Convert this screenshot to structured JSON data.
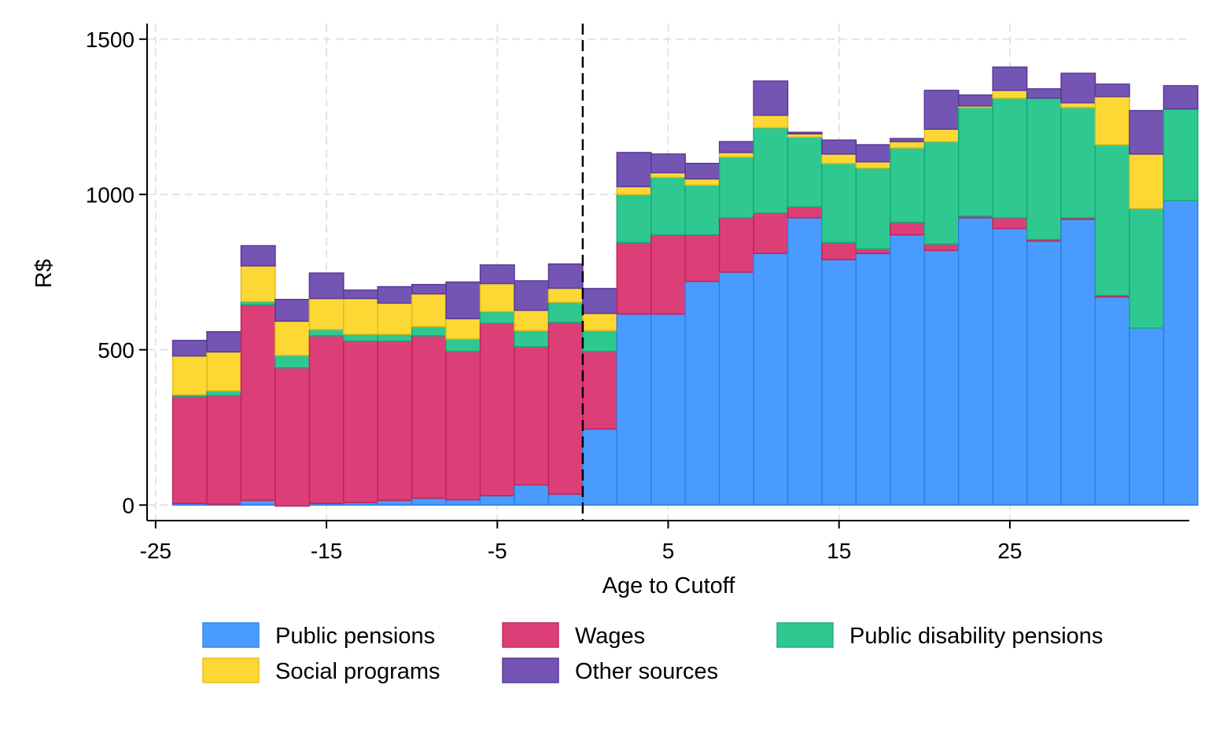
{
  "chart_data": {
    "type": "bar",
    "stacked": true,
    "xlabel": "Age to Cutoff",
    "ylabel": "R$",
    "xlim": [
      -25.5,
      35.5
    ],
    "ylim": [
      -50,
      1550
    ],
    "xticks": [
      -25,
      -15,
      -5,
      5,
      15,
      25
    ],
    "yticks": [
      0,
      500,
      1000,
      1500
    ],
    "grid": true,
    "cutoff_line": 0,
    "legend_position": "bottom",
    "x": [
      -23,
      -21,
      -19,
      -17,
      -15,
      -13,
      -11,
      -9,
      -7,
      -5,
      -3,
      -1,
      1,
      3,
      5,
      7,
      9,
      11,
      13,
      15,
      17,
      19,
      21,
      23,
      25,
      27,
      29,
      31,
      33,
      35
    ],
    "series": [
      {
        "name": "Public pensions",
        "color": "#4a9bff",
        "values": [
          5,
          3,
          15,
          -3,
          5,
          8,
          15,
          22,
          17,
          30,
          65,
          35,
          245,
          615,
          615,
          720,
          750,
          810,
          925,
          790,
          810,
          870,
          820,
          925,
          890,
          850,
          920,
          670,
          570,
          980
        ]
      },
      {
        "name": "Wages",
        "color": "#dc3f77",
        "values": [
          345,
          350,
          630,
          445,
          540,
          520,
          513,
          523,
          478,
          555,
          445,
          553,
          250,
          230,
          255,
          150,
          175,
          130,
          35,
          55,
          15,
          40,
          20,
          5,
          35,
          5,
          5,
          5,
          0,
          0
        ]
      },
      {
        "name": "Public disability pensions",
        "color": "#2fc891",
        "values": [
          5,
          15,
          10,
          40,
          20,
          22,
          22,
          30,
          40,
          38,
          52,
          65,
          67,
          155,
          185,
          160,
          195,
          275,
          225,
          255,
          260,
          240,
          330,
          350,
          385,
          455,
          355,
          485,
          385,
          295
        ]
      },
      {
        "name": "Social programs",
        "color": "#fdd835",
        "values": [
          125,
          125,
          115,
          110,
          100,
          115,
          100,
          105,
          65,
          90,
          65,
          45,
          55,
          25,
          15,
          20,
          15,
          40,
          10,
          30,
          20,
          20,
          40,
          5,
          25,
          0,
          15,
          155,
          175,
          0
        ]
      },
      {
        "name": "Other sources",
        "color": "#7455b3",
        "values": [
          50,
          65,
          65,
          70,
          82,
          27,
          53,
          30,
          118,
          60,
          95,
          78,
          80,
          110,
          60,
          50,
          35,
          110,
          5,
          45,
          55,
          10,
          125,
          35,
          75,
          30,
          95,
          40,
          140,
          75
        ]
      }
    ]
  }
}
